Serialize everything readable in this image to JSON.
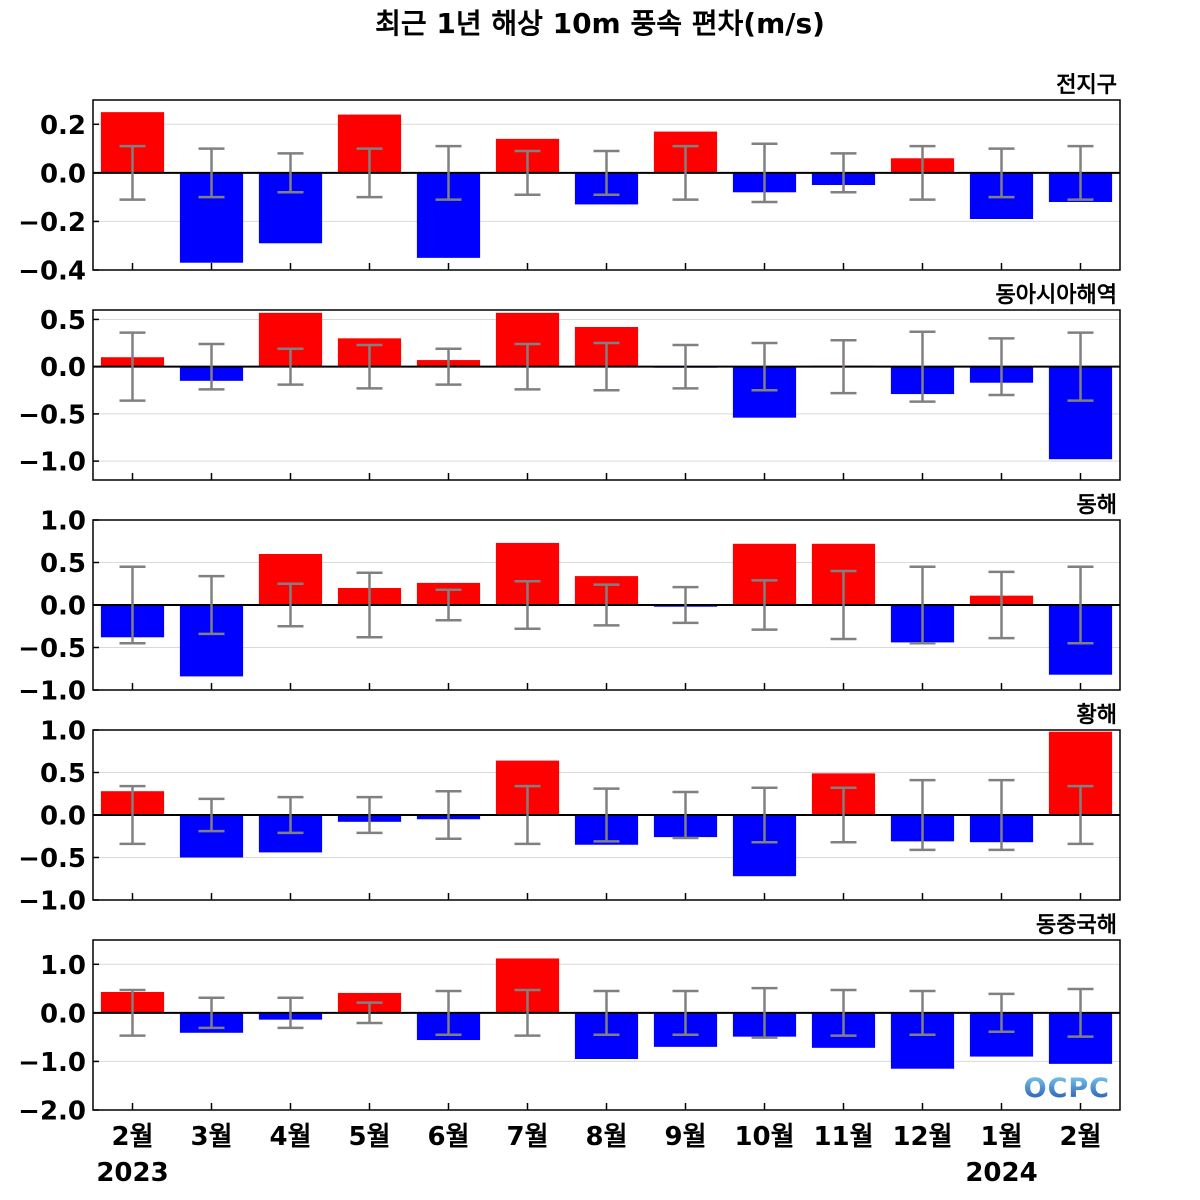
{
  "colors": {
    "positive_bar": "#ff0000",
    "negative_bar": "#0000ff",
    "error_bar": "#808080",
    "zero_line": "#000000",
    "grid": "#d9d9d9",
    "frame": "#000000"
  },
  "logo": {
    "text": "OCPC",
    "gradient_colors": [
      "#7fd0f7",
      "#1d4ea6"
    ]
  },
  "chart_data": {
    "type": "bar",
    "title": "최근 1년 해상 10m 풍속 편차(m/s)",
    "categories": [
      "2월",
      "3월",
      "4월",
      "5월",
      "6월",
      "7월",
      "8월",
      "9월",
      "10월",
      "11월",
      "12월",
      "1월",
      "2월"
    ],
    "year_labels": [
      {
        "text": "2023",
        "index": 0
      },
      {
        "text": "2024",
        "index": 11
      }
    ],
    "grid": true,
    "panels": [
      {
        "label": "전지구",
        "ylim": [
          -0.4,
          0.3
        ],
        "yticks": [
          0.2,
          0.0,
          -0.2,
          -0.4
        ],
        "ytick_labels": [
          "0.2",
          "0.0",
          "−0.2",
          "−0.4"
        ],
        "values": [
          0.25,
          -0.37,
          -0.29,
          0.24,
          -0.35,
          0.14,
          -0.13,
          0.17,
          -0.08,
          -0.05,
          0.06,
          -0.19,
          -0.12
        ],
        "error": [
          0.11,
          0.1,
          0.08,
          0.1,
          0.11,
          0.09,
          0.09,
          0.11,
          0.12,
          0.08,
          0.11,
          0.1,
          0.11
        ]
      },
      {
        "label": "동아시아해역",
        "ylim": [
          -1.2,
          0.6
        ],
        "yticks": [
          0.5,
          0.0,
          -0.5,
          -1.0
        ],
        "ytick_labels": [
          "0.5",
          "0.0",
          "−0.5",
          "−1.0"
        ],
        "values": [
          0.1,
          -0.15,
          0.57,
          0.3,
          0.07,
          0.57,
          0.42,
          -0.01,
          -0.54,
          0.01,
          -0.29,
          -0.17,
          -0.98
        ],
        "error": [
          0.36,
          0.24,
          0.19,
          0.23,
          0.19,
          0.24,
          0.25,
          0.23,
          0.25,
          0.28,
          0.37,
          0.3,
          0.36
        ]
      },
      {
        "label": "동해",
        "ylim": [
          -1.0,
          1.0
        ],
        "yticks": [
          1.0,
          0.5,
          0.0,
          -0.5,
          -1.0
        ],
        "ytick_labels": [
          "1.0",
          "0.5",
          "0.0",
          "−0.5",
          "−1.0"
        ],
        "values": [
          -0.38,
          -0.84,
          0.6,
          0.2,
          0.26,
          0.73,
          0.34,
          -0.02,
          0.72,
          0.72,
          -0.44,
          0.11,
          -0.82
        ],
        "error": [
          0.45,
          0.34,
          0.25,
          0.38,
          0.18,
          0.28,
          0.24,
          0.21,
          0.29,
          0.4,
          0.45,
          0.39,
          0.45
        ]
      },
      {
        "label": "황해",
        "ylim": [
          -1.0,
          1.0
        ],
        "yticks": [
          1.0,
          0.5,
          0.0,
          -0.5,
          -1.0
        ],
        "ytick_labels": [
          "1.0",
          "0.5",
          "0.0",
          "−0.5",
          "−1.0"
        ],
        "values": [
          0.28,
          -0.5,
          -0.44,
          -0.08,
          -0.05,
          0.64,
          -0.35,
          -0.26,
          -0.72,
          0.49,
          -0.31,
          -0.32,
          0.98
        ],
        "error": [
          0.34,
          0.19,
          0.21,
          0.21,
          0.28,
          0.34,
          0.31,
          0.27,
          0.32,
          0.32,
          0.41,
          0.41,
          0.34
        ]
      },
      {
        "label": "동중국해",
        "ylim": [
          -2.0,
          1.5
        ],
        "yticks": [
          1.0,
          0.0,
          -1.0,
          -2.0
        ],
        "ytick_labels": [
          "1.0",
          "0.0",
          "−1.0",
          "−2.0"
        ],
        "values": [
          0.43,
          -0.41,
          -0.14,
          0.41,
          -0.56,
          1.12,
          -0.95,
          -0.7,
          -0.49,
          -0.72,
          -1.15,
          -0.9,
          -1.05
        ],
        "error": [
          0.47,
          0.31,
          0.31,
          0.21,
          0.45,
          0.47,
          0.45,
          0.45,
          0.51,
          0.47,
          0.45,
          0.39,
          0.49
        ]
      }
    ]
  }
}
